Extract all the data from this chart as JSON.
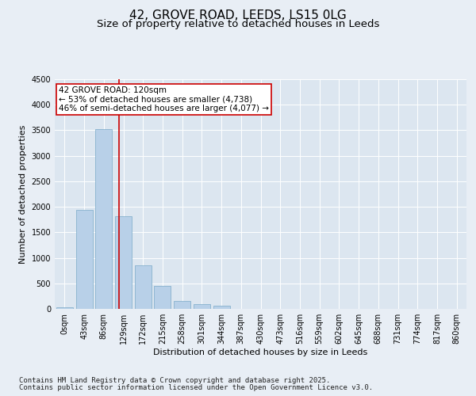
{
  "title_line1": "42, GROVE ROAD, LEEDS, LS15 0LG",
  "title_line2": "Size of property relative to detached houses in Leeds",
  "xlabel": "Distribution of detached houses by size in Leeds",
  "ylabel": "Number of detached properties",
  "categories": [
    "0sqm",
    "43sqm",
    "86sqm",
    "129sqm",
    "172sqm",
    "215sqm",
    "258sqm",
    "301sqm",
    "344sqm",
    "387sqm",
    "430sqm",
    "473sqm",
    "516sqm",
    "559sqm",
    "602sqm",
    "645sqm",
    "688sqm",
    "731sqm",
    "774sqm",
    "817sqm",
    "860sqm"
  ],
  "bar_values": [
    30,
    1940,
    3530,
    1820,
    860,
    450,
    160,
    100,
    65,
    0,
    0,
    0,
    0,
    0,
    0,
    0,
    0,
    0,
    0,
    0,
    0
  ],
  "bar_color": "#b8d0e8",
  "bar_edge_color": "#7aaac8",
  "vline_x": 2.79,
  "vline_color": "#cc0000",
  "annotation_text": "42 GROVE ROAD: 120sqm\n← 53% of detached houses are smaller (4,738)\n46% of semi-detached houses are larger (4,077) →",
  "annotation_box_color": "#ffffff",
  "annotation_box_edge": "#cc0000",
  "ylim": [
    0,
    4500
  ],
  "yticks": [
    0,
    500,
    1000,
    1500,
    2000,
    2500,
    3000,
    3500,
    4000,
    4500
  ],
  "background_color": "#e8eef5",
  "plot_background": "#dce6f0",
  "footer_line1": "Contains HM Land Registry data © Crown copyright and database right 2025.",
  "footer_line2": "Contains public sector information licensed under the Open Government Licence v3.0.",
  "title_fontsize": 11,
  "subtitle_fontsize": 9.5,
  "axis_label_fontsize": 8,
  "tick_fontsize": 7,
  "annotation_fontsize": 7.5,
  "footer_fontsize": 6.5
}
